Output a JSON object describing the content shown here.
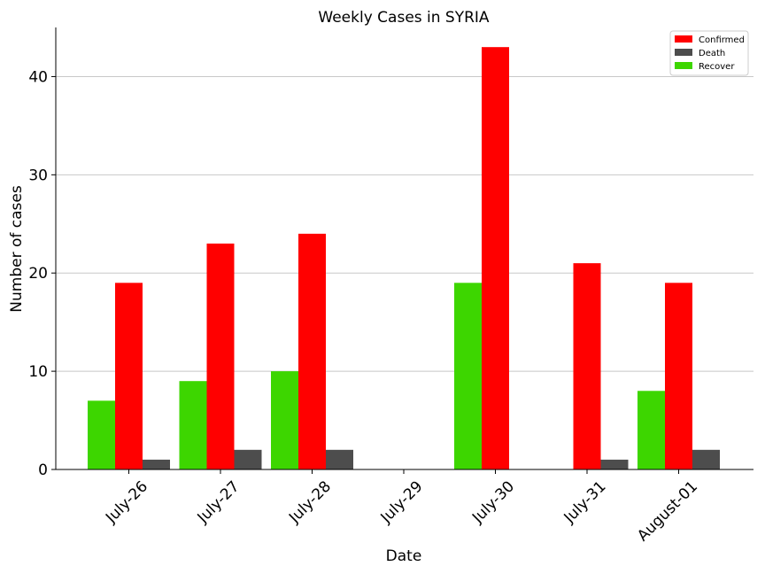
{
  "chart_data": {
    "type": "bar",
    "title": "Weekly Cases in SYRIA",
    "xlabel": "Date",
    "ylabel": "Number of cases",
    "categories": [
      "July-26",
      "July-27",
      "July-28",
      "July-29",
      "July-30",
      "July-31",
      "August-01"
    ],
    "series": [
      {
        "name": "Recover",
        "color": "#3dd600",
        "values": [
          7,
          9,
          10,
          0,
          19,
          0,
          8
        ]
      },
      {
        "name": "Confirmed",
        "color": "#ff0000",
        "values": [
          19,
          23,
          24,
          0,
          43,
          21,
          19
        ]
      },
      {
        "name": "Death",
        "color": "#4d4d4d",
        "values": [
          1,
          2,
          2,
          0,
          0,
          1,
          2
        ]
      }
    ],
    "legend_order": [
      "Confirmed",
      "Death",
      "Recover"
    ],
    "legend_position": "top-right",
    "ylim": [
      0,
      45
    ],
    "yticks": [
      0,
      10,
      20,
      30,
      40
    ],
    "grid": "horizontal"
  }
}
